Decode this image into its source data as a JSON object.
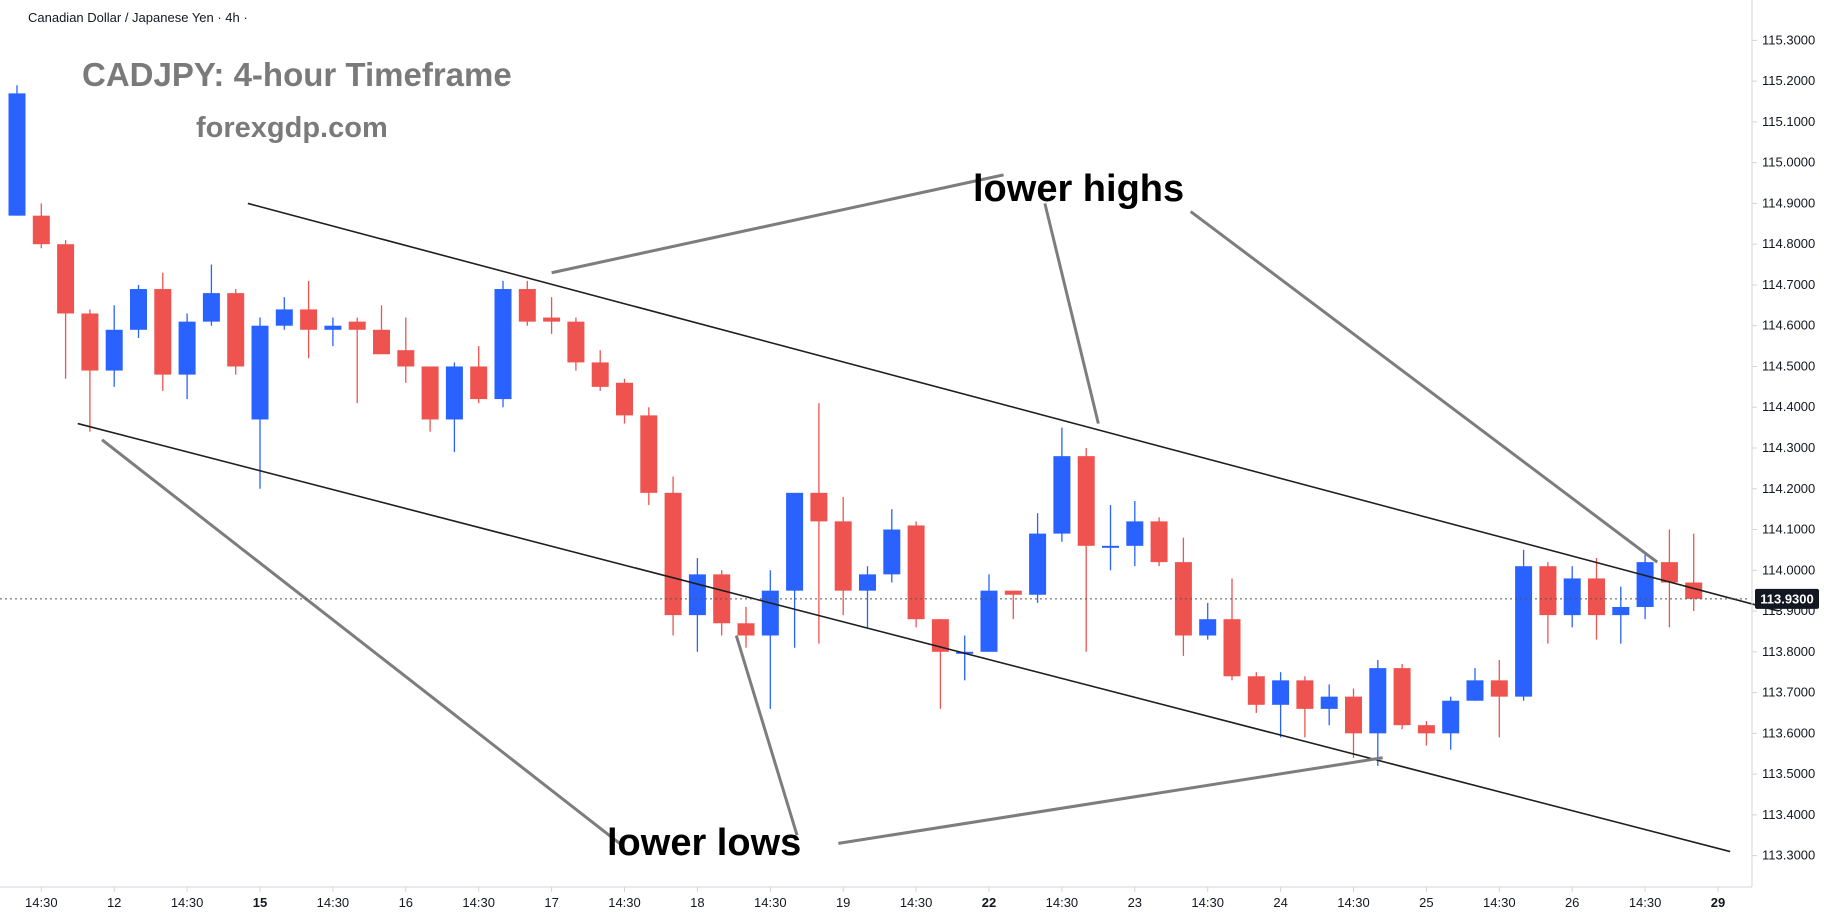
{
  "symbol_title": "Canadian Dollar / Japanese Yen · 4h ·",
  "heading": "CADJPY: 4-hour Timeframe",
  "site": "forexgdp.com",
  "annotations": {
    "highs": "lower highs",
    "lows": "lower lows"
  },
  "colors": {
    "up": "#2962ff",
    "down": "#ef5350",
    "line": "#1f1f1f",
    "pointer": "#7d7d7d",
    "axis_text": "#131722",
    "price_tag": "#131722"
  },
  "chart_data": {
    "type": "candlestick",
    "title": "CADJPY: 4-hour Timeframe",
    "timeframe": "4h",
    "ylim": [
      113.25,
      115.35
    ],
    "y_ticks": [
      "115.3000",
      "115.2000",
      "115.1000",
      "115.0000",
      "114.9000",
      "114.8000",
      "114.7000",
      "114.6000",
      "114.5000",
      "114.4000",
      "114.3000",
      "114.2000",
      "114.1000",
      "114.0000",
      "113.9000",
      "113.8000",
      "113.7000",
      "113.6000",
      "113.5000",
      "113.4000",
      "113.3000"
    ],
    "x_ticks": [
      {
        "label": "14:30",
        "i": 1
      },
      {
        "label": "12",
        "i": 4
      },
      {
        "label": "14:30",
        "i": 7
      },
      {
        "label": "15",
        "i": 10,
        "bold": true
      },
      {
        "label": "14:30",
        "i": 13
      },
      {
        "label": "16",
        "i": 16
      },
      {
        "label": "14:30",
        "i": 19
      },
      {
        "label": "17",
        "i": 22
      },
      {
        "label": "14:30",
        "i": 25
      },
      {
        "label": "18",
        "i": 28
      },
      {
        "label": "14:30",
        "i": 31
      },
      {
        "label": "19",
        "i": 34
      },
      {
        "label": "14:30",
        "i": 37
      },
      {
        "label": "22",
        "i": 40,
        "bold": true
      },
      {
        "label": "14:30",
        "i": 43
      },
      {
        "label": "23",
        "i": 46
      },
      {
        "label": "14:30",
        "i": 49
      },
      {
        "label": "24",
        "i": 52
      },
      {
        "label": "14:30",
        "i": 55
      },
      {
        "label": "25",
        "i": 58
      },
      {
        "label": "14:30",
        "i": 61
      },
      {
        "label": "26",
        "i": 64
      },
      {
        "label": "14:30",
        "i": 67
      },
      {
        "label": "29",
        "i": 70,
        "bold": true
      }
    ],
    "current_price": 113.93,
    "current_price_label": "113.9300",
    "candles": [
      {
        "o": 114.87,
        "h": 115.19,
        "l": 114.87,
        "c": 115.17
      },
      {
        "o": 114.87,
        "h": 114.9,
        "l": 114.79,
        "c": 114.8
      },
      {
        "o": 114.8,
        "h": 114.81,
        "l": 114.47,
        "c": 114.63
      },
      {
        "o": 114.63,
        "h": 114.64,
        "l": 114.34,
        "c": 114.49
      },
      {
        "o": 114.49,
        "h": 114.65,
        "l": 114.45,
        "c": 114.59
      },
      {
        "o": 114.59,
        "h": 114.7,
        "l": 114.57,
        "c": 114.69
      },
      {
        "o": 114.69,
        "h": 114.73,
        "l": 114.44,
        "c": 114.48
      },
      {
        "o": 114.48,
        "h": 114.63,
        "l": 114.42,
        "c": 114.61
      },
      {
        "o": 114.61,
        "h": 114.75,
        "l": 114.6,
        "c": 114.68
      },
      {
        "o": 114.68,
        "h": 114.69,
        "l": 114.48,
        "c": 114.5
      },
      {
        "o": 114.37,
        "h": 114.62,
        "l": 114.2,
        "c": 114.6
      },
      {
        "o": 114.6,
        "h": 114.67,
        "l": 114.59,
        "c": 114.64
      },
      {
        "o": 114.64,
        "h": 114.71,
        "l": 114.52,
        "c": 114.59
      },
      {
        "o": 114.59,
        "h": 114.62,
        "l": 114.55,
        "c": 114.6
      },
      {
        "o": 114.61,
        "h": 114.62,
        "l": 114.41,
        "c": 114.59
      },
      {
        "o": 114.59,
        "h": 114.65,
        "l": 114.53,
        "c": 114.53
      },
      {
        "o": 114.54,
        "h": 114.62,
        "l": 114.46,
        "c": 114.5
      },
      {
        "o": 114.5,
        "h": 114.5,
        "l": 114.34,
        "c": 114.37
      },
      {
        "o": 114.37,
        "h": 114.51,
        "l": 114.29,
        "c": 114.5
      },
      {
        "o": 114.5,
        "h": 114.55,
        "l": 114.41,
        "c": 114.42
      },
      {
        "o": 114.42,
        "h": 114.71,
        "l": 114.4,
        "c": 114.69
      },
      {
        "o": 114.69,
        "h": 114.71,
        "l": 114.6,
        "c": 114.61
      },
      {
        "o": 114.62,
        "h": 114.67,
        "l": 114.58,
        "c": 114.61
      },
      {
        "o": 114.61,
        "h": 114.62,
        "l": 114.49,
        "c": 114.51
      },
      {
        "o": 114.51,
        "h": 114.54,
        "l": 114.44,
        "c": 114.45
      },
      {
        "o": 114.46,
        "h": 114.47,
        "l": 114.36,
        "c": 114.38
      },
      {
        "o": 114.38,
        "h": 114.4,
        "l": 114.16,
        "c": 114.19
      },
      {
        "o": 114.19,
        "h": 114.23,
        "l": 113.84,
        "c": 113.89
      },
      {
        "o": 113.89,
        "h": 114.03,
        "l": 113.8,
        "c": 113.99
      },
      {
        "o": 113.99,
        "h": 114.0,
        "l": 113.84,
        "c": 113.87
      },
      {
        "o": 113.87,
        "h": 113.91,
        "l": 113.81,
        "c": 113.84
      },
      {
        "o": 113.84,
        "h": 114.0,
        "l": 113.66,
        "c": 113.95
      },
      {
        "o": 113.95,
        "h": 114.19,
        "l": 113.81,
        "c": 114.19
      },
      {
        "o": 114.19,
        "h": 114.41,
        "l": 113.82,
        "c": 114.12
      },
      {
        "o": 114.12,
        "h": 114.18,
        "l": 113.89,
        "c": 113.95
      },
      {
        "o": 113.95,
        "h": 114.01,
        "l": 113.86,
        "c": 113.99
      },
      {
        "o": 113.99,
        "h": 114.15,
        "l": 113.97,
        "c": 114.1
      },
      {
        "o": 114.11,
        "h": 114.12,
        "l": 113.86,
        "c": 113.88
      },
      {
        "o": 113.88,
        "h": 113.88,
        "l": 113.66,
        "c": 113.8
      },
      {
        "o": 113.8,
        "h": 113.84,
        "l": 113.73,
        "c": 113.8
      },
      {
        "o": 113.8,
        "h": 113.99,
        "l": 113.8,
        "c": 113.95
      },
      {
        "o": 113.95,
        "h": 113.95,
        "l": 113.88,
        "c": 113.94
      },
      {
        "o": 113.94,
        "h": 114.14,
        "l": 113.92,
        "c": 114.09
      },
      {
        "o": 114.09,
        "h": 114.35,
        "l": 114.07,
        "c": 114.28
      },
      {
        "o": 114.28,
        "h": 114.3,
        "l": 113.8,
        "c": 114.06
      },
      {
        "o": 114.06,
        "h": 114.16,
        "l": 114.0,
        "c": 114.06
      },
      {
        "o": 114.06,
        "h": 114.17,
        "l": 114.01,
        "c": 114.12
      },
      {
        "o": 114.12,
        "h": 114.13,
        "l": 114.01,
        "c": 114.02
      },
      {
        "o": 114.02,
        "h": 114.08,
        "l": 113.79,
        "c": 113.84
      },
      {
        "o": 113.84,
        "h": 113.92,
        "l": 113.83,
        "c": 113.88
      },
      {
        "o": 113.88,
        "h": 113.98,
        "l": 113.73,
        "c": 113.74
      },
      {
        "o": 113.74,
        "h": 113.75,
        "l": 113.65,
        "c": 113.67
      },
      {
        "o": 113.67,
        "h": 113.75,
        "l": 113.59,
        "c": 113.73
      },
      {
        "o": 113.73,
        "h": 113.74,
        "l": 113.59,
        "c": 113.66
      },
      {
        "o": 113.66,
        "h": 113.72,
        "l": 113.62,
        "c": 113.69
      },
      {
        "o": 113.69,
        "h": 113.71,
        "l": 113.54,
        "c": 113.6
      },
      {
        "o": 113.6,
        "h": 113.78,
        "l": 113.52,
        "c": 113.76
      },
      {
        "o": 113.76,
        "h": 113.77,
        "l": 113.61,
        "c": 113.62
      },
      {
        "o": 113.62,
        "h": 113.63,
        "l": 113.57,
        "c": 113.6
      },
      {
        "o": 113.6,
        "h": 113.69,
        "l": 113.56,
        "c": 113.68
      },
      {
        "o": 113.68,
        "h": 113.76,
        "l": 113.68,
        "c": 113.73
      },
      {
        "o": 113.73,
        "h": 113.78,
        "l": 113.59,
        "c": 113.69
      },
      {
        "o": 113.69,
        "h": 114.05,
        "l": 113.68,
        "c": 114.01
      },
      {
        "o": 114.01,
        "h": 114.02,
        "l": 113.82,
        "c": 113.89
      },
      {
        "o": 113.89,
        "h": 114.01,
        "l": 113.86,
        "c": 113.98
      },
      {
        "o": 113.98,
        "h": 114.03,
        "l": 113.83,
        "c": 113.89
      },
      {
        "o": 113.89,
        "h": 113.96,
        "l": 113.82,
        "c": 113.91
      },
      {
        "o": 113.91,
        "h": 114.04,
        "l": 113.88,
        "c": 114.02
      },
      {
        "o": 114.02,
        "h": 114.1,
        "l": 113.86,
        "c": 113.97
      },
      {
        "o": 113.97,
        "h": 114.09,
        "l": 113.9,
        "c": 113.93
      }
    ],
    "trendlines": [
      {
        "name": "upper-trendline",
        "x1": 9.5,
        "y1": 114.9,
        "x2": 72.5,
        "y2": 113.9
      },
      {
        "name": "lower-trendline",
        "x1": 2.5,
        "y1": 114.36,
        "x2": 70.5,
        "y2": 113.31
      }
    ],
    "pointers": [
      {
        "name": "pointer-highs-1",
        "x1": 22,
        "y1": 114.73,
        "x2": 40.6,
        "y2": 114.97
      },
      {
        "name": "pointer-highs-2",
        "x1": 42.3,
        "y1": 114.9,
        "x2": 44.5,
        "y2": 114.36
      },
      {
        "name": "pointer-highs-3",
        "x1": 48.3,
        "y1": 114.88,
        "x2": 67.5,
        "y2": 114.02
      },
      {
        "name": "pointer-lows-1",
        "x1": 3.5,
        "y1": 114.32,
        "x2": 24.8,
        "y2": 113.33
      },
      {
        "name": "pointer-lows-2",
        "x1": 29.6,
        "y1": 113.84,
        "x2": 32.1,
        "y2": 113.35
      },
      {
        "name": "pointer-lows-3",
        "x1": 33.8,
        "y1": 113.33,
        "x2": 56.2,
        "y2": 113.54
      }
    ]
  }
}
